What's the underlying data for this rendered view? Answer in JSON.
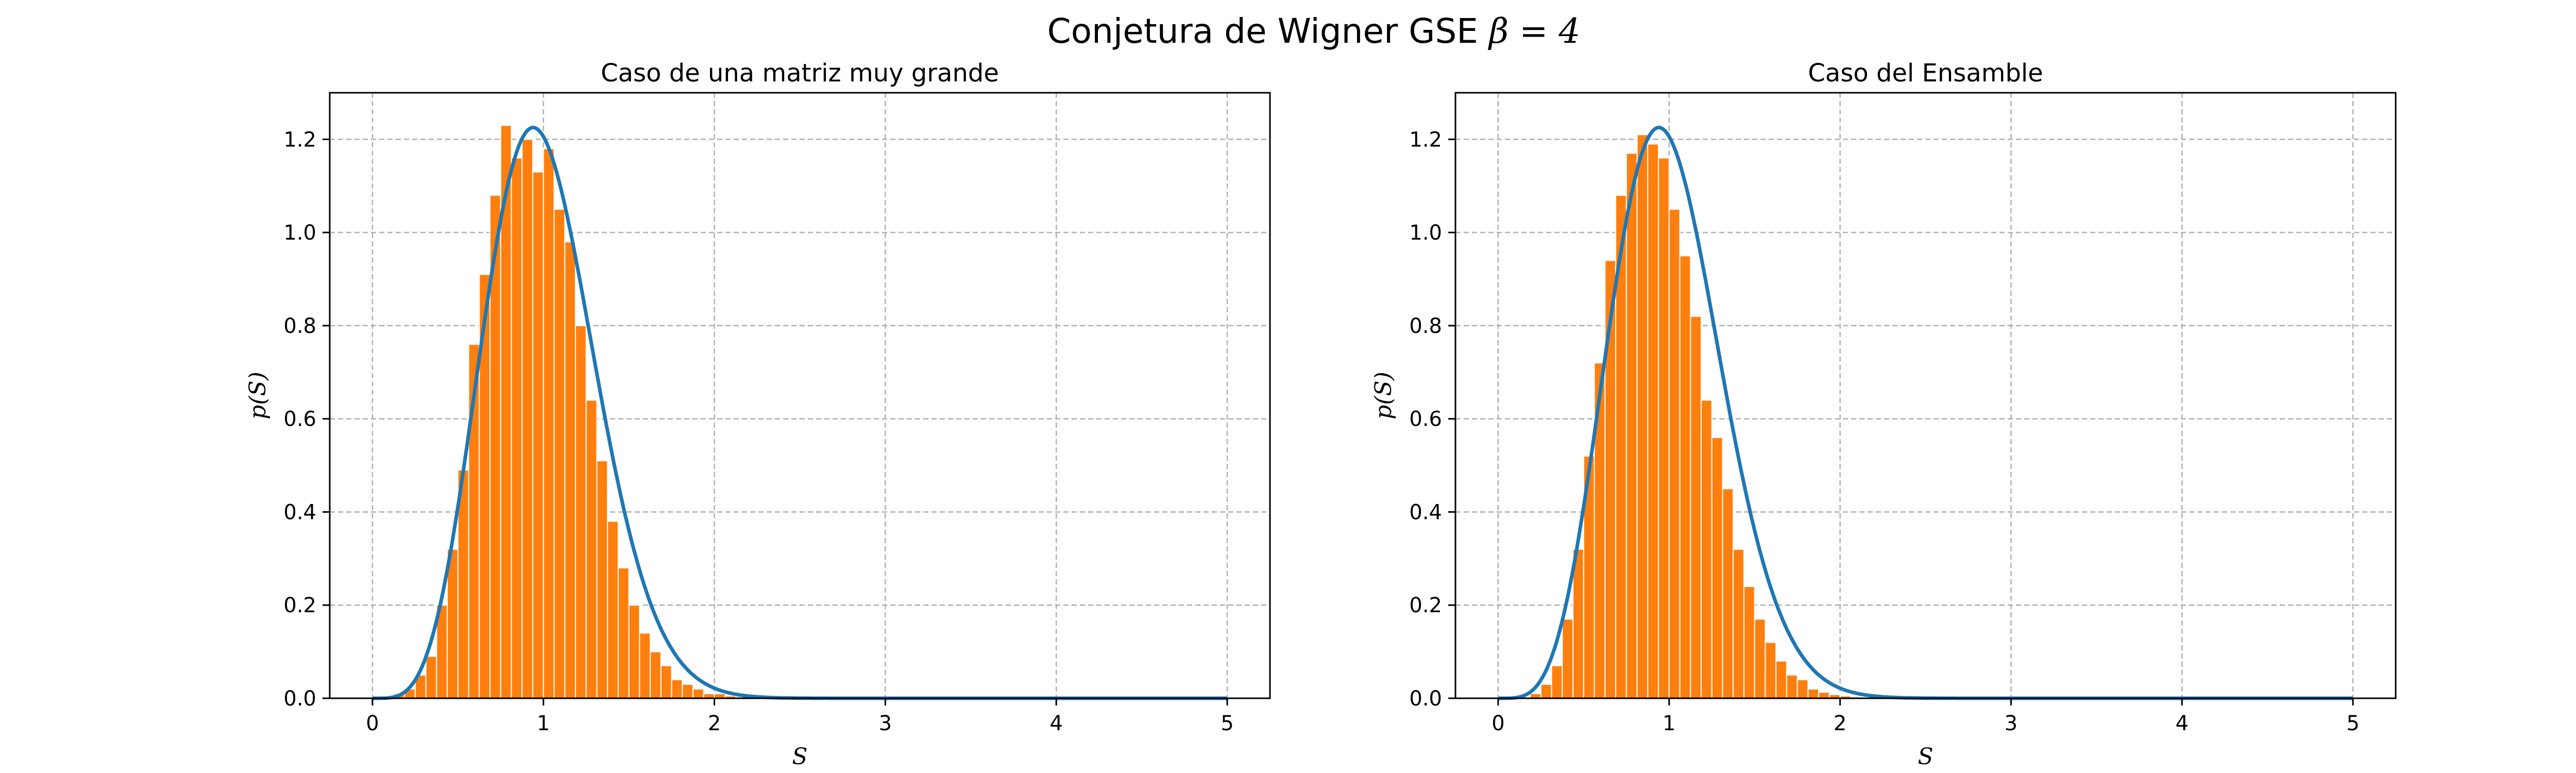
{
  "figure": {
    "title_text": "Conjetura de Wigner GSE ",
    "title_math": "β = 4"
  },
  "colors": {
    "bar_fill": "#ff7f0e",
    "bar_edge": "#ffffff",
    "curve": "#1f77b4",
    "grid": "#b0b0b0"
  },
  "chart_data": [
    {
      "type": "bar",
      "title": "Caso de una matriz muy grande",
      "xlabel": "S",
      "ylabel": "p(S)",
      "xlim": [
        -0.25,
        5.25
      ],
      "ylim": [
        0,
        1.3
      ],
      "xticks": [
        0,
        1,
        2,
        3,
        4,
        5
      ],
      "yticks": [
        0.0,
        0.2,
        0.4,
        0.6,
        0.8,
        1.0,
        1.2
      ],
      "grid": true,
      "bin_width": 0.0625,
      "bin_starts": [
        0.125,
        0.1875,
        0.25,
        0.3125,
        0.375,
        0.4375,
        0.5,
        0.5625,
        0.625,
        0.6875,
        0.75,
        0.8125,
        0.875,
        0.9375,
        1.0,
        1.0625,
        1.125,
        1.1875,
        1.25,
        1.3125,
        1.375,
        1.4375,
        1.5,
        1.5625,
        1.625,
        1.6875,
        1.75,
        1.8125,
        1.875,
        1.9375,
        2.0,
        2.0625,
        2.125,
        2.1875,
        2.25
      ],
      "values": [
        0.01,
        0.02,
        0.05,
        0.09,
        0.2,
        0.32,
        0.49,
        0.76,
        0.91,
        1.08,
        1.23,
        1.16,
        1.2,
        1.13,
        1.18,
        1.05,
        0.98,
        0.8,
        0.64,
        0.51,
        0.38,
        0.28,
        0.2,
        0.14,
        0.1,
        0.07,
        0.04,
        0.03,
        0.02,
        0.01,
        0.01,
        0.005,
        0.003,
        0.002,
        0.001
      ],
      "series": [
        {
          "name": "",
          "kind": "histogram"
        },
        {
          "name": "",
          "kind": "curve",
          "formula": "Wigner surmise, beta = 4"
        }
      ]
    },
    {
      "type": "bar",
      "title": "Caso del Ensamble",
      "xlabel": "S",
      "ylabel": "p(S)",
      "xlim": [
        -0.25,
        5.25
      ],
      "ylim": [
        0,
        1.3
      ],
      "xticks": [
        0,
        1,
        2,
        3,
        4,
        5
      ],
      "yticks": [
        0.0,
        0.2,
        0.4,
        0.6,
        0.8,
        1.0,
        1.2
      ],
      "grid": true,
      "bin_width": 0.0625,
      "bin_starts": [
        0.1875,
        0.25,
        0.3125,
        0.375,
        0.4375,
        0.5,
        0.5625,
        0.625,
        0.6875,
        0.75,
        0.8125,
        0.875,
        0.9375,
        1.0,
        1.0625,
        1.125,
        1.1875,
        1.25,
        1.3125,
        1.375,
        1.4375,
        1.5,
        1.5625,
        1.625,
        1.6875,
        1.75,
        1.8125,
        1.875,
        1.9375,
        2.0,
        2.0625,
        2.125,
        2.1875,
        2.25
      ],
      "values": [
        0.01,
        0.03,
        0.07,
        0.17,
        0.32,
        0.52,
        0.72,
        0.94,
        1.08,
        1.17,
        1.21,
        1.19,
        1.16,
        1.05,
        0.95,
        0.82,
        0.64,
        0.56,
        0.45,
        0.32,
        0.24,
        0.17,
        0.12,
        0.08,
        0.05,
        0.04,
        0.02,
        0.013,
        0.008,
        0.005,
        0.003,
        0.002,
        0.001,
        0.001
      ],
      "series": [
        {
          "name": "",
          "kind": "histogram"
        },
        {
          "name": "",
          "kind": "curve",
          "formula": "Wigner surmise, beta = 4"
        }
      ]
    }
  ]
}
